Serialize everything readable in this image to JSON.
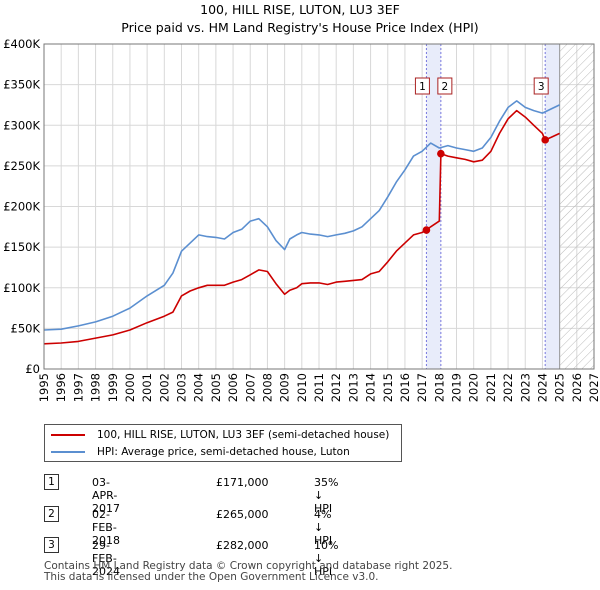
{
  "title_line1": "100, HILL RISE, LUTON, LU3 3EF",
  "title_line2": "Price paid vs. HM Land Registry's House Price Index (HPI)",
  "colors": {
    "property": "#cc0000",
    "hpi": "#5b8fd0",
    "sale_vline": "#7777dd",
    "sale_band": "#e8ecfa",
    "future_hatch": "#bbbbbb",
    "grid": "#d8d8d8"
  },
  "legend": [
    {
      "label": "100, HILL RISE, LUTON, LU3 3EF (semi-detached house)",
      "color": "#cc0000"
    },
    {
      "label": "HPI: Average price, semi-detached house, Luton",
      "color": "#5b8fd0"
    }
  ],
  "sales": [
    {
      "num": "1",
      "date": "03-APR-2017",
      "price": "£171,000",
      "hpi": "35% ↓ HPI"
    },
    {
      "num": "2",
      "date": "02-FEB-2018",
      "price": "£265,000",
      "hpi": "4% ↓ HPI"
    },
    {
      "num": "3",
      "date": "29-FEB-2024",
      "price": "£282,000",
      "hpi": "10% ↓ HPI"
    }
  ],
  "footer_line1": "Contains HM Land Registry data © Crown copyright and database right 2025.",
  "footer_line2": "This data is licensed under the Open Government Licence v3.0.",
  "chart_data": {
    "type": "line",
    "xlim": [
      1995,
      2027
    ],
    "ylim": [
      0,
      400000
    ],
    "y_ticks": [
      0,
      50000,
      100000,
      150000,
      200000,
      250000,
      300000,
      350000,
      400000
    ],
    "y_tick_labels": [
      "£0",
      "£50K",
      "£100K",
      "£150K",
      "£200K",
      "£250K",
      "£300K",
      "£350K",
      "£400K"
    ],
    "x_ticks": [
      1995,
      1996,
      1997,
      1998,
      1999,
      2000,
      2001,
      2002,
      2003,
      2004,
      2005,
      2006,
      2007,
      2008,
      2009,
      2010,
      2011,
      2012,
      2013,
      2014,
      2015,
      2016,
      2017,
      2018,
      2019,
      2020,
      2021,
      2022,
      2023,
      2024,
      2025,
      2026,
      2027
    ],
    "data_end": 2025.0,
    "sale_points": [
      {
        "label": "1",
        "x": 2017.25,
        "y": 171000
      },
      {
        "label": "2",
        "x": 2018.09,
        "y": 265000
      },
      {
        "label": "3",
        "x": 2024.16,
        "y": 282000
      }
    ],
    "series": [
      {
        "name": "HPI: Average price, semi-detached house, Luton",
        "x": [
          1995,
          1996,
          1997,
          1998,
          1999,
          2000,
          2001,
          2002,
          2002.5,
          2003,
          2003.5,
          2004,
          2004.5,
          2005,
          2005.5,
          2006,
          2006.5,
          2007,
          2007.5,
          2008,
          2008.5,
          2009,
          2009.3,
          2009.7,
          2010,
          2010.5,
          2011,
          2011.5,
          2012,
          2012.5,
          2013,
          2013.5,
          2014,
          2014.5,
          2015,
          2015.5,
          2016,
          2016.5,
          2017,
          2017.5,
          2018,
          2018.5,
          2019,
          2019.5,
          2020,
          2020.5,
          2021,
          2021.5,
          2022,
          2022.5,
          2023,
          2023.5,
          2024,
          2024.5,
          2025
        ],
        "y": [
          48000,
          49000,
          53000,
          58000,
          65000,
          75000,
          90000,
          103000,
          118000,
          145000,
          155000,
          165000,
          163000,
          162000,
          160000,
          168000,
          172000,
          182000,
          185000,
          175000,
          158000,
          147000,
          160000,
          165000,
          168000,
          166000,
          165000,
          163000,
          165000,
          167000,
          170000,
          175000,
          185000,
          195000,
          212000,
          230000,
          245000,
          262000,
          268000,
          278000,
          272000,
          275000,
          272000,
          270000,
          268000,
          272000,
          285000,
          305000,
          322000,
          330000,
          322000,
          318000,
          315000,
          320000,
          325000
        ]
      },
      {
        "name": "100, HILL RISE, LUTON, LU3 3EF (semi-detached house)",
        "x": [
          1995,
          1996,
          1997,
          1998,
          1999,
          2000,
          2001,
          2002,
          2002.5,
          2003,
          2003.5,
          2004,
          2004.5,
          2005,
          2005.5,
          2006,
          2006.5,
          2007,
          2007.5,
          2008,
          2008.5,
          2009,
          2009.3,
          2009.7,
          2010,
          2010.5,
          2011,
          2011.5,
          2012,
          2012.5,
          2013,
          2013.5,
          2014,
          2014.5,
          2015,
          2015.5,
          2016,
          2016.5,
          2017,
          2017.25,
          2017.5,
          2018.0,
          2018.09,
          2018.5,
          2019,
          2019.5,
          2020,
          2020.5,
          2021,
          2021.5,
          2022,
          2022.5,
          2023,
          2023.5,
          2024.0,
          2024.16,
          2024.5,
          2025
        ],
        "y": [
          31000,
          32000,
          34000,
          38000,
          42000,
          48000,
          57000,
          65000,
          70000,
          90000,
          96000,
          100000,
          103000,
          103000,
          103000,
          107000,
          110000,
          116000,
          122000,
          120000,
          105000,
          92000,
          97000,
          100000,
          105000,
          106000,
          106000,
          104000,
          107000,
          108000,
          109000,
          110000,
          117000,
          120000,
          132000,
          145000,
          155000,
          165000,
          168000,
          171000,
          175000,
          182000,
          265000,
          262000,
          260000,
          258000,
          255000,
          257000,
          268000,
          290000,
          308000,
          318000,
          310000,
          300000,
          290000,
          282000,
          285000,
          290000
        ]
      }
    ]
  }
}
